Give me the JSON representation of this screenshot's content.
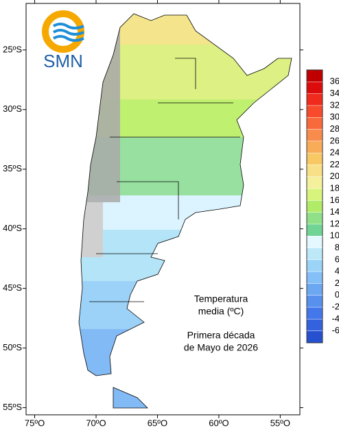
{
  "logo": {
    "text": "SMN"
  },
  "map": {
    "lonlim": [
      -75.7,
      -53.4
    ],
    "latlim": [
      -55.6,
      -21.1
    ],
    "lonticks": [
      {
        "value": -75,
        "label": "75ºO"
      },
      {
        "value": -70,
        "label": "70ºO"
      },
      {
        "value": -65,
        "label": "65ºO"
      },
      {
        "value": -60,
        "label": "60ºO"
      },
      {
        "value": -55,
        "label": "55ºO"
      }
    ],
    "latticks": [
      {
        "value": -25,
        "label": "25ºS"
      },
      {
        "value": -30,
        "label": "30ºS"
      },
      {
        "value": -35,
        "label": "35ºS"
      },
      {
        "value": -40,
        "label": "40ºS"
      },
      {
        "value": -45,
        "label": "45ºS"
      },
      {
        "value": -50,
        "label": "50ºS"
      },
      {
        "value": -55,
        "label": "55ºS"
      }
    ],
    "title": [
      "Temperatura",
      "media (ºC)"
    ],
    "subtitle": [
      "Primera década",
      "de Mayo de 2026"
    ]
  },
  "colorbar": {
    "ticks": [
      36,
      34,
      32,
      30,
      28,
      26,
      24,
      22,
      20,
      18,
      16,
      14,
      12,
      10,
      8,
      6,
      4,
      2,
      0,
      -2,
      -4,
      -6
    ],
    "colors": [
      "#c00000",
      "#dd0c0c",
      "#f02a1c",
      "#f84a2c",
      "#f86a3c",
      "#f88c4c",
      "#f8ac58",
      "#f8c864",
      "#f8e088",
      "#f4f09c",
      "#d8f47c",
      "#b0ec68",
      "#90e088",
      "#70d494",
      "#e4f8ff",
      "#bce8f8",
      "#9cd4f8",
      "#84bff8",
      "#6ca8f2",
      "#5890ee",
      "#4478ea",
      "#3462de",
      "#2650d0"
    ]
  }
}
